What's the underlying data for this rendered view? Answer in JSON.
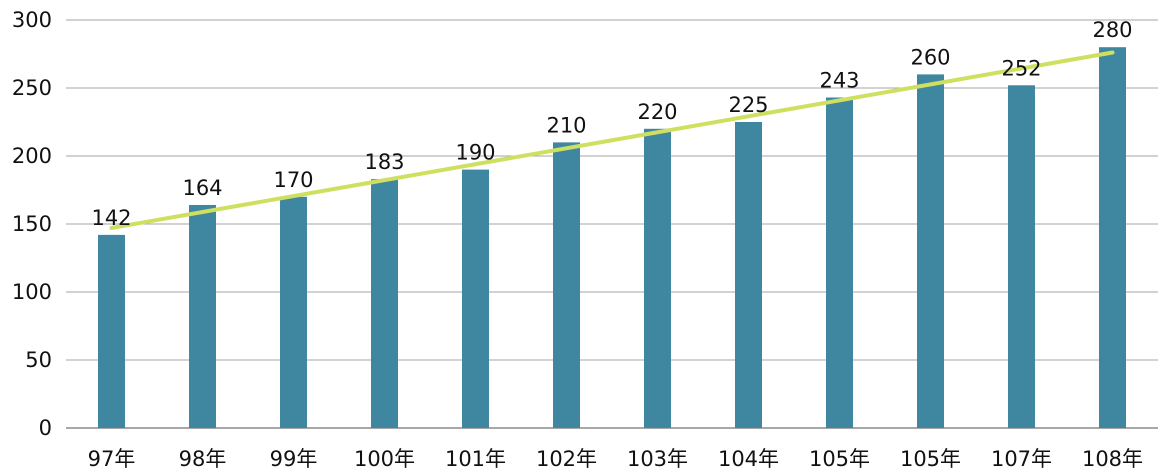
{
  "chart_data": {
    "type": "bar",
    "title": "",
    "xlabel": "",
    "ylabel": "",
    "categories": [
      "97年",
      "98年",
      "99年",
      "100年",
      "101年",
      "102年",
      "103年",
      "104年",
      "105年",
      "105年",
      "107年",
      "108年"
    ],
    "values": [
      142,
      164,
      170,
      183,
      190,
      210,
      220,
      225,
      243,
      260,
      252,
      280
    ],
    "data_labels": [
      "142",
      "164",
      "170",
      "183",
      "190",
      "210",
      "220",
      "225",
      "243",
      "260",
      "252",
      "280"
    ],
    "ylim": [
      0,
      300
    ],
    "yticks": [
      "0",
      "50",
      "100",
      "150",
      "200",
      "250",
      "300"
    ],
    "grid": true,
    "legend": "none",
    "trendline": {
      "type": "linear"
    },
    "colors": {
      "bar": "#3f86a0",
      "trendline": "#cfe061",
      "grid": "#a6a6a6",
      "axis": "#8c8c8c"
    }
  }
}
